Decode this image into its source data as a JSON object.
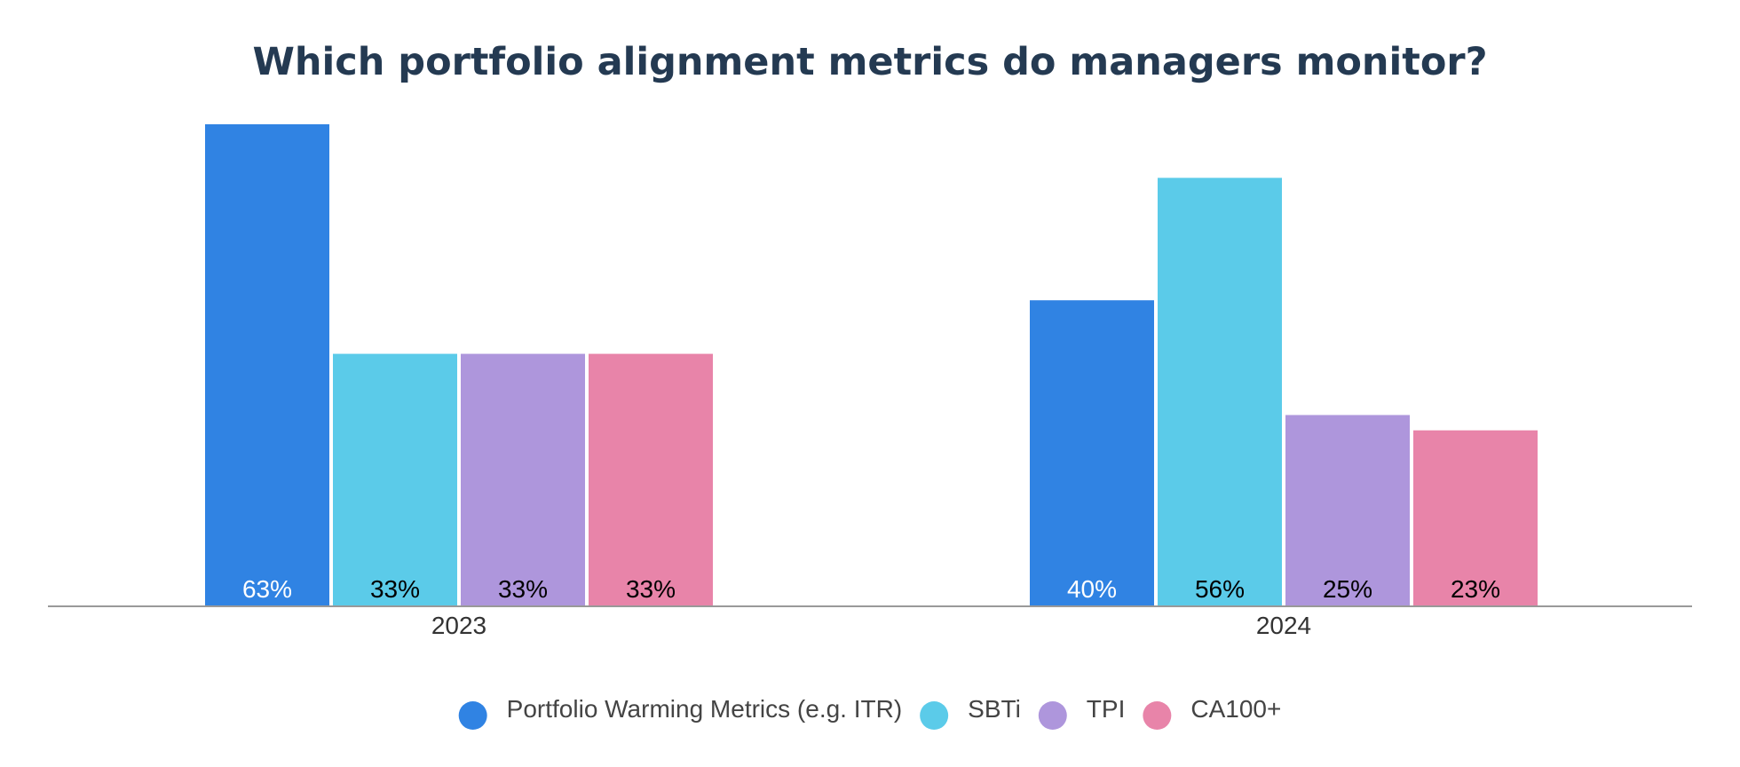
{
  "chart_data": {
    "type": "bar",
    "title": "Which portfolio alignment metrics do managers monitor?",
    "categories": [
      "2023",
      "2024"
    ],
    "series": [
      {
        "name": "Portfolio Warming Metrics (e.g. ITR)",
        "color": "#3083e3",
        "values": [
          63,
          40
        ],
        "labels": [
          "63%",
          "40%"
        ],
        "label_color": "#ffffff"
      },
      {
        "name": "SBTi",
        "color": "#5bcbe9",
        "values": [
          33,
          56
        ],
        "labels": [
          "33%",
          "56%"
        ],
        "label_color": "#000000"
      },
      {
        "name": "TPI",
        "color": "#ae96dc",
        "values": [
          33,
          25
        ],
        "labels": [
          "33%",
          "25%"
        ],
        "label_color": "#000000"
      },
      {
        "name": "CA100+",
        "color": "#e884a9",
        "values": [
          33,
          23
        ],
        "labels": [
          "33%",
          "23%"
        ],
        "label_color": "#000000"
      }
    ],
    "ylim": [
      0,
      63
    ],
    "grid": false,
    "legend": "bottom-center",
    "axis_color": "#999999"
  }
}
